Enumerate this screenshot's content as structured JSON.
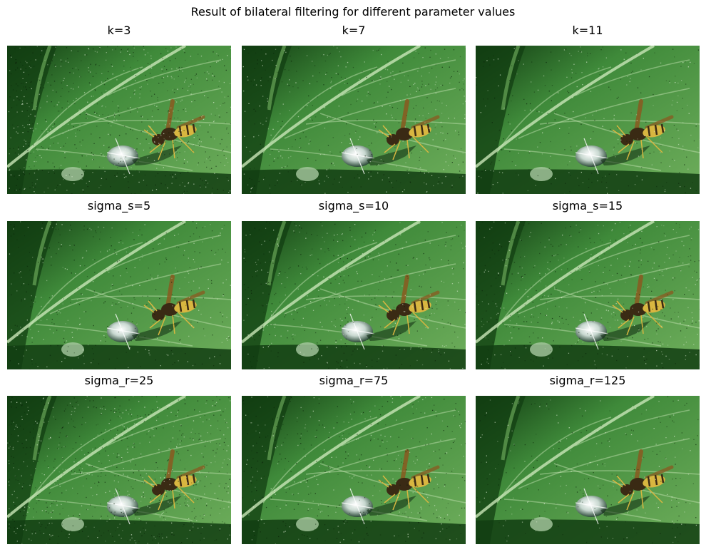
{
  "figure": {
    "title": "Result of bilateral filtering for different parameter values"
  },
  "panels": [
    {
      "title": "k=3",
      "noise": 0.9
    },
    {
      "title": "k=7",
      "noise": 0.55
    },
    {
      "title": "k=11",
      "noise": 0.35
    },
    {
      "title": "sigma_s=5",
      "noise": 0.5
    },
    {
      "title": "sigma_s=10",
      "noise": 0.55
    },
    {
      "title": "sigma_s=15",
      "noise": 0.6
    },
    {
      "title": "sigma_r=25",
      "noise": 0.95
    },
    {
      "title": "sigma_r=75",
      "noise": 0.55
    },
    {
      "title": "sigma_r=125",
      "noise": 0.3
    }
  ],
  "colors": {
    "leaf_light": "#6fae5c",
    "leaf_mid": "#3f8a3a",
    "leaf_dark": "#123d12",
    "vein": "#c9e6b8",
    "wasp_body": "#3a2a14",
    "wasp_stripe": "#d8b640",
    "drop": "#c8d8d0"
  }
}
